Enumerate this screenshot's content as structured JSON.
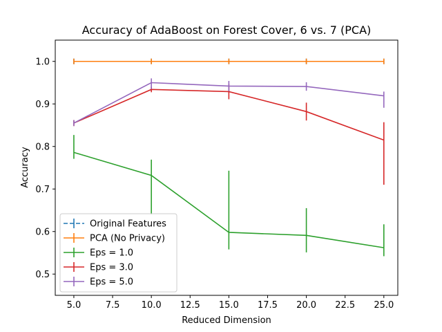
{
  "chart_data": {
    "type": "line",
    "title": "Accuracy of AdaBoost on Forest Cover, 6 vs. 7 (PCA)",
    "xlabel": "Reduced Dimension",
    "ylabel": "Accuracy",
    "xlim": [
      3.8,
      25.9
    ],
    "ylim": [
      0.45,
      1.05
    ],
    "xticks": [
      5.0,
      7.5,
      10.0,
      12.5,
      15.0,
      17.5,
      20.0,
      22.5,
      25.0
    ],
    "xtick_labels": [
      "5.0",
      "7.5",
      "10.0",
      "12.5",
      "15.0",
      "17.5",
      "20.0",
      "22.5",
      "25.0"
    ],
    "yticks": [
      0.5,
      0.6,
      0.7,
      0.8,
      0.9,
      1.0
    ],
    "ytick_labels": [
      "0.5",
      "0.6",
      "0.7",
      "0.8",
      "0.9",
      "1.0"
    ],
    "grid": false,
    "legend_position": "lower-left",
    "x": [
      5,
      10,
      15,
      20,
      25
    ],
    "series": [
      {
        "name": "Original Features",
        "color": "#1f77b4",
        "dashed": true,
        "values": [
          1.0,
          1.0,
          1.0,
          1.0,
          1.0
        ],
        "yerr_low": [
          1.0,
          1.0,
          1.0,
          1.0,
          1.0
        ],
        "yerr_high": [
          1.0,
          1.0,
          1.0,
          1.0,
          1.0
        ]
      },
      {
        "name": "PCA (No Privacy)",
        "color": "#ff7f0e",
        "dashed": false,
        "values": [
          1.0,
          1.0,
          1.0,
          1.0,
          1.0
        ],
        "yerr_low": [
          1.0,
          1.0,
          1.0,
          1.0,
          1.0
        ],
        "yerr_high": [
          1.0,
          1.0,
          1.0,
          1.0,
          1.0
        ]
      },
      {
        "name": "Eps = 1.0",
        "color": "#2ca02c",
        "dashed": false,
        "values": [
          0.786,
          0.732,
          0.598,
          0.591,
          0.562
        ],
        "yerr_low": [
          0.771,
          0.64,
          0.558,
          0.551,
          0.542
        ],
        "yerr_high": [
          0.827,
          0.769,
          0.743,
          0.655,
          0.617
        ]
      },
      {
        "name": "Eps = 3.0",
        "color": "#d62728",
        "dashed": false,
        "values": [
          0.855,
          0.934,
          0.929,
          0.882,
          0.815
        ],
        "yerr_low": [
          0.848,
          0.934,
          0.911,
          0.861,
          0.71
        ],
        "yerr_high": [
          0.862,
          0.934,
          0.947,
          0.903,
          0.857
        ]
      },
      {
        "name": "Eps = 5.0",
        "color": "#9467bd",
        "dashed": false,
        "values": [
          0.855,
          0.95,
          0.942,
          0.941,
          0.919
        ],
        "yerr_low": [
          0.848,
          0.935,
          0.93,
          0.931,
          0.891
        ],
        "yerr_high": [
          0.862,
          0.96,
          0.954,
          0.951,
          0.929
        ]
      }
    ]
  }
}
